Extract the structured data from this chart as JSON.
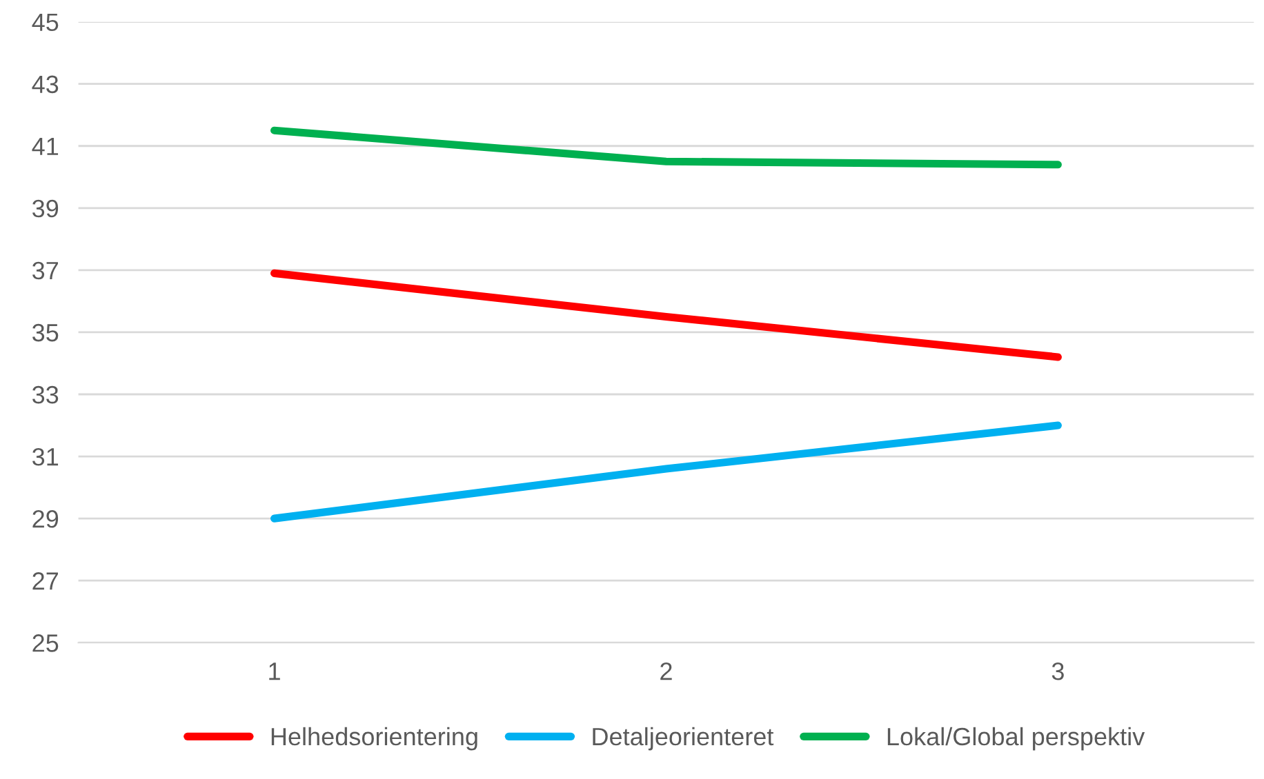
{
  "chart_data": {
    "type": "line",
    "categories": [
      "1",
      "2",
      "3"
    ],
    "series": [
      {
        "name": "Helhedsorientering",
        "color": "#ff0000",
        "values": [
          36.9,
          35.5,
          34.2
        ]
      },
      {
        "name": "Detaljeorienteret",
        "color": "#00b0f0",
        "values": [
          29.0,
          30.6,
          32.0
        ]
      },
      {
        "name": "Lokal/Global perspektiv",
        "color": "#00b050",
        "values": [
          41.5,
          40.5,
          40.4
        ]
      }
    ],
    "ylim": [
      25,
      45
    ],
    "yticks": [
      25,
      27,
      29,
      31,
      33,
      35,
      37,
      39,
      41,
      43,
      45
    ],
    "grid": "y",
    "legend": "bottom",
    "marker": "none",
    "line_style": "solid"
  }
}
